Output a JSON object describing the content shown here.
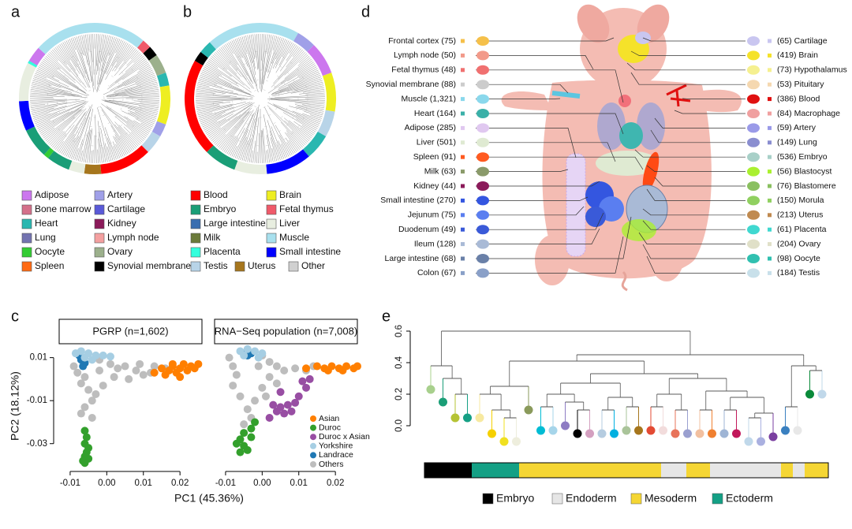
{
  "panel_labels": [
    "a",
    "b",
    "c",
    "d",
    "e"
  ],
  "tree_legend": [
    {
      "label": "Adipose",
      "color": "#cc77ee"
    },
    {
      "label": "Bone marrow",
      "color": "#d4708a"
    },
    {
      "label": "Heart",
      "color": "#2ab7b0"
    },
    {
      "label": "Lung",
      "color": "#7373b0"
    },
    {
      "label": "Oocyte",
      "color": "#33cc33"
    },
    {
      "label": "Spleen",
      "color": "#ff6a13"
    },
    {
      "label": "Artery",
      "color": "#a0a0e8"
    },
    {
      "label": "Cartilage",
      "color": "#5a5ad8"
    },
    {
      "label": "Kidney",
      "color": "#8b1a5a"
    },
    {
      "label": "Lymph node",
      "color": "#f4a0a0"
    },
    {
      "label": "Ovary",
      "color": "#9cb08c"
    },
    {
      "label": "Synovial membrane",
      "color": "#000000"
    },
    {
      "label": "Blood",
      "color": "#ff0000"
    },
    {
      "label": "Embryo",
      "color": "#1a9e77"
    },
    {
      "label": "Large intestine",
      "color": "#3a6eb0"
    },
    {
      "label": "Milk",
      "color": "#6b7a3a"
    },
    {
      "label": "Placenta",
      "color": "#33ffdd"
    },
    {
      "label": "Testis",
      "color": "#b8d4e8"
    },
    {
      "label": "Uterus",
      "color": "#a6761d"
    },
    {
      "label": "Brain",
      "color": "#eeee22"
    },
    {
      "label": "Fetal thymus",
      "color": "#f05a6a"
    },
    {
      "label": "Liver",
      "color": "#e8eee0"
    },
    {
      "label": "Muscle",
      "color": "#a8e0ee"
    },
    {
      "label": "Small intestine",
      "color": "#0000ff"
    },
    {
      "label": "Other",
      "color": "#d0d0d0"
    }
  ],
  "anatomy": {
    "left": [
      "Frontal cortex (75)",
      "Lymph node (50)",
      "Fetal thymus (48)",
      "Synovial membrane (88)",
      "Muscle (1,321)",
      "Heart (164)",
      "Adipose (285)",
      "Liver (501)",
      "Spleen (91)",
      "Milk (63)",
      "Kidney (44)",
      "Small intestine (270)",
      "Jejunum (75)",
      "Duodenum (49)",
      "Ileum (128)",
      "Large intestine (68)",
      "Colon (67)"
    ],
    "right": [
      "(65) Cartilage",
      "(419) Brain",
      "(73) Hypothalamus",
      "(53) Pituitary",
      "(386) Blood",
      "(84) Macrophage",
      "(59) Artery",
      "(149) Lung",
      "(536) Embryo",
      "(56) Blastocyst",
      "(76) Blastomere",
      "(150) Morula",
      "(213) Uterus",
      "(61) Placenta",
      "(204) Ovary",
      "(98) Oocyte",
      "(184) Testis"
    ]
  },
  "chart_data": [
    {
      "type": "scatter",
      "panel_titles": [
        "PGRP (n=1,602)",
        "RNA−Seq population (n=7,008)"
      ],
      "xlabel": "PC1 (45.36%)",
      "ylabel": "PC2 (18.12%)",
      "xlim": [
        -0.013,
        0.026
      ],
      "ylim": [
        -0.04,
        0.015
      ],
      "xticks": [
        -0.01,
        {
          "value": 0,
          "label": "0.00"
        },
        0.01,
        0.02
      ],
      "yticks": [
        0.01,
        -0.01,
        -0.03
      ],
      "series": [
        {
          "name": "Asian",
          "color": "#ff7f00",
          "panels": [
            {
              "x": [
                0.013,
                0.015,
                0.017,
                0.018,
                0.019,
                0.02,
                0.021,
                0.022,
                0.023,
                0.024,
                0.025,
                0.016,
                0.02,
                0.018
              ],
              "y": [
                0.003,
                0.005,
                0.004,
                0.006,
                0.003,
                0.005,
                0.007,
                0.004,
                0.006,
                0.005,
                0.007,
                0.002,
                0.001,
                0.007
              ]
            },
            {
              "x": [
                0.012,
                0.015,
                0.017,
                0.019,
                0.021,
                0.023,
                0.025,
                0.026,
                0.018,
                0.022
              ],
              "y": [
                0.005,
                0.006,
                0.005,
                0.006,
                0.005,
                0.006,
                0.005,
                0.006,
                0.004,
                0.004
              ]
            }
          ]
        },
        {
          "name": "Duroc",
          "color": "#33a02c",
          "panels": [
            {
              "x": [
                -0.006,
                -0.0055,
                -0.006,
                -0.005,
                -0.0055,
                -0.006,
                -0.005,
                -0.0065,
                -0.006
              ],
              "y": [
                -0.024,
                -0.027,
                -0.03,
                -0.032,
                -0.034,
                -0.036,
                -0.037,
                -0.038,
                -0.039
              ]
            },
            {
              "x": [
                -0.002,
                -0.003,
                -0.005,
                -0.006,
                -0.007,
                -0.005,
                -0.004,
                -0.006,
                -0.003
              ],
              "y": [
                -0.02,
                -0.023,
                -0.025,
                -0.028,
                -0.03,
                -0.031,
                -0.033,
                -0.034,
                -0.027
              ]
            }
          ]
        },
        {
          "name": "Duroc x Asian",
          "color": "#984ea3",
          "panels": [
            {
              "x": [],
              "y": []
            },
            {
              "x": [
                0.003,
                0.005,
                0.007,
                0.009,
                0.004,
                0.006,
                0.008,
                0.01,
                0.012,
                0.011,
                0.013,
                0.005,
                0.002
              ],
              "y": [
                -0.012,
                -0.013,
                -0.012,
                -0.011,
                -0.015,
                -0.016,
                -0.015,
                -0.008,
                -0.004,
                -0.001,
                0,
                -0.006,
                -0.018
              ]
            }
          ]
        },
        {
          "name": "Yorkshire",
          "color": "#a6cee3",
          "panels": [
            {
              "x": [
                -0.0085,
                -0.007,
                -0.005,
                -0.003,
                -0.001,
                0.001,
                -0.006,
                -0.004
              ],
              "y": [
                0.012,
                0.013,
                0.012,
                0.011,
                0.011,
                0.0105,
                0.01,
                0.009
              ]
            },
            {
              "x": [
                -0.006,
                -0.004,
                -0.002,
                0,
                -0.005,
                -0.001
              ],
              "y": [
                0.013,
                0.014,
                0.013,
                0.012,
                0.011,
                0.01
              ]
            }
          ]
        },
        {
          "name": "Landrace",
          "color": "#1f78b4",
          "panels": [
            {
              "x": [
                -0.0075,
                -0.007,
                -0.006,
                -0.0065
              ],
              "y": [
                0.011,
                0.009,
                0.0075,
                0.006
              ]
            },
            {
              "x": [
                -0.005,
                -0.004,
                -0.003
              ],
              "y": [
                0.012,
                0.011,
                0.012
              ]
            }
          ]
        },
        {
          "name": "Others",
          "color": "#bdbdbd",
          "panels": [
            {
              "x": [
                -0.009,
                -0.008,
                -0.006,
                -0.007,
                -0.005,
                -0.004,
                -0.006,
                -0.007,
                -0.004,
                -0.002,
                0.001,
                0.003,
                0.005,
                0.008,
                0.01,
                0.012,
                0.013,
                0.016,
                0.002,
                0.006,
                -0.001,
                -0.003,
                -0.002,
                0.009
              ],
              "y": [
                0.006,
                0.003,
                0.001,
                -0.002,
                -0.005,
                -0.01,
                -0.013,
                -0.016,
                -0.018,
                0.004,
                0.007,
                0.005,
                0.006,
                0.004,
                0.002,
                0.003,
                0.006,
                0.005,
                0.001,
                0,
                -0.003,
                -0.007,
                0.009,
                0.007
              ]
            },
            {
              "x": [
                -0.009,
                -0.008,
                -0.007,
                -0.008,
                -0.006,
                -0.004,
                -0.003,
                -0.005,
                -0.001,
                0.002,
                0.004,
                0.006,
                0.009,
                0.012,
                0.014,
                0.002,
                0,
                -0.002,
                0.004,
                0.001,
                -0.004,
                0
              ],
              "y": [
                0.01,
                0.006,
                0.002,
                -0.003,
                -0.008,
                -0.014,
                -0.018,
                -0.021,
                0.006,
                0.008,
                0.006,
                0.004,
                0.005,
                0.004,
                0.006,
                0.001,
                -0.004,
                -0.01,
                -0.002,
                -0.008,
                0.011,
                0.011
              ]
            }
          ]
        }
      ]
    },
    {
      "type": "dendrogram",
      "ylim": [
        0,
        0.6
      ],
      "yticks": [
        {
          "value": 0,
          "label": "0.0"
        },
        0.2,
        0.4,
        0.6
      ],
      "legend": [
        {
          "name": "Embryo",
          "color": "#000000"
        },
        {
          "name": "Endoderm",
          "color": "#e6e6e6"
        },
        {
          "name": "Mesoderm",
          "color": "#f5d634"
        },
        {
          "name": "Ectoderm",
          "color": "#14a085"
        }
      ]
    }
  ]
}
